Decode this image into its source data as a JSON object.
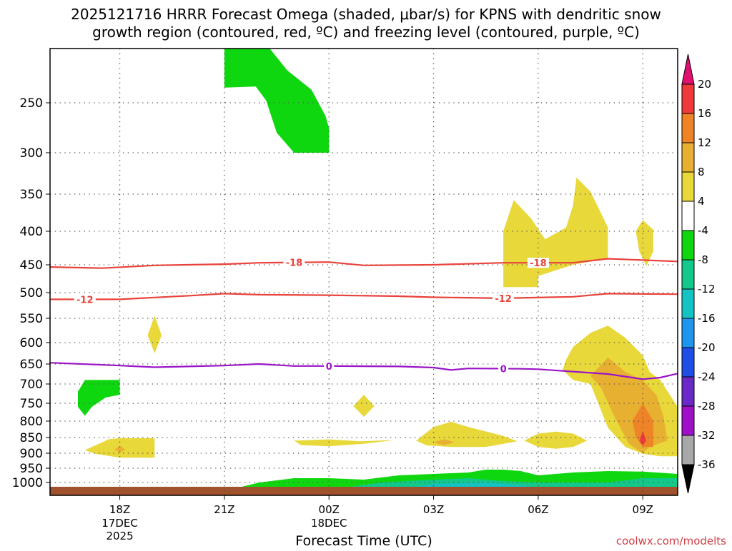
{
  "chart_data": {
    "type": "contour",
    "title_line1": "2025121716 HRRR Forecast Omega (shaded, μbar/s) for KPNS with dendritic snow",
    "title_line2": "growth region (contoured, red, ºC) and freezing level (contoured, purple, ºC)",
    "xlabel": "Forecast Time (UTC)",
    "credit": "coolwx.com/modelts",
    "y_ticks": [
      {
        "p": 250,
        "label": "250"
      },
      {
        "p": 300,
        "label": "300"
      },
      {
        "p": 350,
        "label": "350"
      },
      {
        "p": 400,
        "label": "400"
      },
      {
        "p": 450,
        "label": "450"
      },
      {
        "p": 500,
        "label": "500"
      },
      {
        "p": 550,
        "label": "550"
      },
      {
        "p": 600,
        "label": "600"
      },
      {
        "p": 650,
        "label": "650"
      },
      {
        "p": 700,
        "label": "700"
      },
      {
        "p": 750,
        "label": "750"
      },
      {
        "p": 800,
        "label": "800"
      },
      {
        "p": 850,
        "label": "850"
      },
      {
        "p": 900,
        "label": "900"
      },
      {
        "p": 950,
        "label": "950"
      },
      {
        "p": 1000,
        "label": "1000"
      }
    ],
    "x_ticks": [
      {
        "hour": 2,
        "label": "18Z",
        "sub1": "17DEC",
        "sub2": "2025"
      },
      {
        "hour": 5,
        "label": "21Z",
        "sub1": "",
        "sub2": ""
      },
      {
        "hour": 8,
        "label": "00Z",
        "sub1": "18DEC",
        "sub2": ""
      },
      {
        "hour": 11,
        "label": "03Z",
        "sub1": "",
        "sub2": ""
      },
      {
        "hour": 14,
        "label": "06Z",
        "sub1": "",
        "sub2": ""
      },
      {
        "hour": 17,
        "label": "09Z",
        "sub1": "",
        "sub2": ""
      }
    ],
    "colorbar": [
      {
        "label": "20",
        "color": "#e0106e"
      },
      {
        "label": "16",
        "color": "#ee3a3a"
      },
      {
        "label": "12",
        "color": "#ee8426"
      },
      {
        "label": "8",
        "color": "#e8b030"
      },
      {
        "label": "4",
        "color": "#e8d83a"
      },
      {
        "label": "-4",
        "color": "#ffffff"
      },
      {
        "label": "-8",
        "color": "#0fd70f"
      },
      {
        "label": "-12",
        "color": "#12c88a"
      },
      {
        "label": "-16",
        "color": "#14c3c3"
      },
      {
        "label": "-20",
        "color": "#1e96f0"
      },
      {
        "label": "-24",
        "color": "#1e4ee6"
      },
      {
        "label": "-28",
        "color": "#6a28c8"
      },
      {
        "label": "-32",
        "color": "#a010c8"
      },
      {
        "label": "-36",
        "color": "#a8a8a8"
      }
    ],
    "isotherms": [
      {
        "name": "-18",
        "color": "#e8423a",
        "points": [
          [
            0,
            454
          ],
          [
            1.5,
            456
          ],
          [
            3,
            451
          ],
          [
            5,
            449
          ],
          [
            6,
            447
          ],
          [
            8,
            446
          ],
          [
            9,
            451
          ],
          [
            11,
            450
          ],
          [
            13,
            447
          ],
          [
            15,
            447
          ],
          [
            16,
            441
          ],
          [
            18,
            445
          ]
        ],
        "labels": [
          7,
          14
        ]
      },
      {
        "name": "-12",
        "color": "#e8423a",
        "points": [
          [
            0,
            513
          ],
          [
            2,
            513
          ],
          [
            4,
            506
          ],
          [
            5,
            502
          ],
          [
            6,
            504
          ],
          [
            8,
            505
          ],
          [
            10,
            507
          ],
          [
            11,
            509
          ],
          [
            13,
            511
          ],
          [
            15,
            508
          ],
          [
            16,
            502
          ],
          [
            18,
            503
          ]
        ],
        "labels": [
          1,
          13
        ]
      },
      {
        "name": "0",
        "color": "#9a14c8",
        "points": [
          [
            0,
            647
          ],
          [
            2,
            654
          ],
          [
            3,
            658
          ],
          [
            5,
            654
          ],
          [
            6,
            650
          ],
          [
            7,
            655
          ],
          [
            8,
            655
          ],
          [
            10,
            656
          ],
          [
            11,
            659
          ],
          [
            11.5,
            665
          ],
          [
            12,
            661
          ],
          [
            13.5,
            662
          ],
          [
            14,
            663
          ],
          [
            16,
            675
          ],
          [
            17,
            688
          ],
          [
            17.5,
            684
          ],
          [
            18,
            674
          ]
        ],
        "labels": [
          8,
          13
        ]
      }
    ],
    "omega_regions": [
      {
        "name": "upper-sinking",
        "color": "#0fd70f",
        "points": [
          [
            5,
            200
          ],
          [
            6.3,
            200
          ],
          [
            6.8,
            220
          ],
          [
            7.5,
            238
          ],
          [
            7.9,
            263
          ],
          [
            8,
            275
          ],
          [
            8,
            300
          ],
          [
            7,
            300
          ],
          [
            6.5,
            280
          ],
          [
            6.2,
            248
          ],
          [
            5.9,
            235
          ],
          [
            5,
            236
          ]
        ]
      },
      {
        "name": "sinking-700",
        "color": "#0fd70f",
        "points": [
          [
            1,
            690
          ],
          [
            2,
            690
          ],
          [
            2,
            728
          ],
          [
            1.6,
            735
          ],
          [
            1.2,
            760
          ],
          [
            1,
            785
          ],
          [
            0.8,
            760
          ],
          [
            0.8,
            720
          ]
        ]
      },
      {
        "name": "lift-580",
        "color": "#e8d83a",
        "points": [
          [
            3,
            545
          ],
          [
            3.2,
            585
          ],
          [
            3,
            625
          ],
          [
            2.8,
            585
          ]
        ]
      },
      {
        "name": "lift-880",
        "color": "#e8d83a",
        "points": [
          [
            1,
            890
          ],
          [
            1.7,
            855
          ],
          [
            2,
            852
          ],
          [
            3,
            852
          ],
          [
            3,
            915
          ],
          [
            2,
            915
          ],
          [
            1.3,
            902
          ]
        ]
      },
      {
        "name": "lift-880-core",
        "color": "#e8b030",
        "points": [
          [
            2,
            876
          ],
          [
            2.15,
            888
          ],
          [
            2,
            898
          ],
          [
            1.85,
            888
          ]
        ]
      },
      {
        "name": "lift-760",
        "color": "#e8d83a",
        "points": [
          [
            9.0,
            728
          ],
          [
            9.3,
            758
          ],
          [
            9.0,
            788
          ],
          [
            8.7,
            758
          ]
        ]
      },
      {
        "name": "lift-860",
        "color": "#e8d83a",
        "points": [
          [
            7,
            860
          ],
          [
            8,
            856
          ],
          [
            8.9,
            862
          ],
          [
            9.9,
            858
          ],
          [
            9,
            870
          ],
          [
            8,
            878
          ],
          [
            7.2,
            874
          ]
        ]
      },
      {
        "name": "lift-840",
        "color": "#e8d83a",
        "points": [
          [
            10.5,
            860
          ],
          [
            11,
            818
          ],
          [
            11.5,
            802
          ],
          [
            12,
            818
          ],
          [
            13,
            845
          ],
          [
            13.4,
            862
          ],
          [
            12.5,
            880
          ],
          [
            11.5,
            880
          ],
          [
            10.8,
            875
          ]
        ]
      },
      {
        "name": "lift-840-core",
        "color": "#e8b030",
        "points": [
          [
            11,
            865
          ],
          [
            11.3,
            855
          ],
          [
            11.6,
            865
          ],
          [
            11.3,
            875
          ]
        ]
      },
      {
        "name": "lift-850b",
        "color": "#e8d83a",
        "points": [
          [
            13.6,
            860
          ],
          [
            14,
            838
          ],
          [
            14.5,
            832
          ],
          [
            15,
            838
          ],
          [
            15.4,
            860
          ],
          [
            15,
            880
          ],
          [
            14.5,
            886
          ],
          [
            14,
            880
          ]
        ]
      },
      {
        "name": "lift-400",
        "color": "#e8d83a",
        "points": [
          [
            13,
            400
          ],
          [
            13.3,
            358
          ],
          [
            13.8,
            383
          ],
          [
            14.2,
            412
          ],
          [
            14.8,
            395
          ],
          [
            15,
            365
          ],
          [
            15.1,
            330
          ],
          [
            15.5,
            347
          ],
          [
            16,
            395
          ],
          [
            16,
            440
          ],
          [
            15,
            450
          ],
          [
            14,
            470
          ],
          [
            14,
            490
          ],
          [
            13,
            490
          ],
          [
            13,
            450
          ]
        ]
      },
      {
        "name": "lift-410",
        "color": "#e8d83a",
        "points": [
          [
            17,
            385
          ],
          [
            17.3,
            398
          ],
          [
            17.3,
            430
          ],
          [
            17.1,
            452
          ],
          [
            16.9,
            430
          ],
          [
            16.8,
            400
          ]
        ]
      },
      {
        "name": "lift-700-outer",
        "color": "#e8d83a",
        "points": [
          [
            14.8,
            640
          ],
          [
            15,
            610
          ],
          [
            15.5,
            580
          ],
          [
            16,
            565
          ],
          [
            16.5,
            590
          ],
          [
            17,
            630
          ],
          [
            17.2,
            670
          ],
          [
            17.5,
            690
          ],
          [
            18,
            760
          ],
          [
            18,
            910
          ],
          [
            17.5,
            910
          ],
          [
            17,
            902
          ],
          [
            16.5,
            880
          ],
          [
            16,
            820
          ],
          [
            15.5,
            700
          ],
          [
            15,
            690
          ],
          [
            14.7,
            665
          ]
        ]
      },
      {
        "name": "lift-700-mid",
        "color": "#e8b030",
        "points": [
          [
            15.5,
            680
          ],
          [
            16,
            635
          ],
          [
            16.5,
            670
          ],
          [
            17,
            690
          ],
          [
            17.4,
            730
          ],
          [
            17.6,
            790
          ],
          [
            17.7,
            860
          ],
          [
            17.2,
            880
          ],
          [
            17,
            900
          ],
          [
            16.6,
            870
          ],
          [
            16.2,
            790
          ],
          [
            15.8,
            710
          ]
        ]
      },
      {
        "name": "lift-700-inner",
        "color": "#ee8426",
        "points": [
          [
            16.7,
            800
          ],
          [
            17,
            750
          ],
          [
            17.3,
            800
          ],
          [
            17.3,
            880
          ],
          [
            17,
            880
          ],
          [
            16.8,
            850
          ]
        ]
      },
      {
        "name": "lift-700-core",
        "color": "#ee3a3a",
        "points": [
          [
            17,
            830
          ],
          [
            17.1,
            860
          ],
          [
            17,
            875
          ],
          [
            16.9,
            860
          ]
        ]
      },
      {
        "name": "bl-green",
        "color": "#0fd70f",
        "points": [
          [
            4,
            1025
          ],
          [
            5,
            1022
          ],
          [
            5.5,
            1015
          ],
          [
            6,
            1000
          ],
          [
            7,
            985
          ],
          [
            8,
            985
          ],
          [
            9,
            990
          ],
          [
            10,
            975
          ],
          [
            11,
            970
          ],
          [
            12,
            965
          ],
          [
            12.5,
            955
          ],
          [
            13,
            955
          ],
          [
            13.5,
            960
          ],
          [
            14,
            975
          ],
          [
            15,
            965
          ],
          [
            16,
            960
          ],
          [
            17,
            962
          ],
          [
            18,
            970
          ],
          [
            18,
            1025
          ]
        ]
      },
      {
        "name": "bl-teal",
        "color": "#12c88a",
        "points": [
          [
            8,
            1025
          ],
          [
            9.5,
            1000
          ],
          [
            11,
            990
          ],
          [
            12,
            985
          ],
          [
            12.5,
            990
          ],
          [
            13,
            995
          ],
          [
            14,
            1000
          ],
          [
            16,
            1000
          ],
          [
            17,
            985
          ],
          [
            18,
            985
          ],
          [
            18,
            1025
          ]
        ]
      },
      {
        "name": "bl-cyan",
        "color": "#14c3c3",
        "points": [
          [
            10,
            1025
          ],
          [
            11,
            1005
          ],
          [
            12.5,
            1000
          ],
          [
            13.5,
            1010
          ],
          [
            14.5,
            1025
          ]
        ]
      }
    ],
    "ylim": [
      200,
      1025
    ],
    "xlim": [
      0,
      18
    ],
    "grid": true
  }
}
